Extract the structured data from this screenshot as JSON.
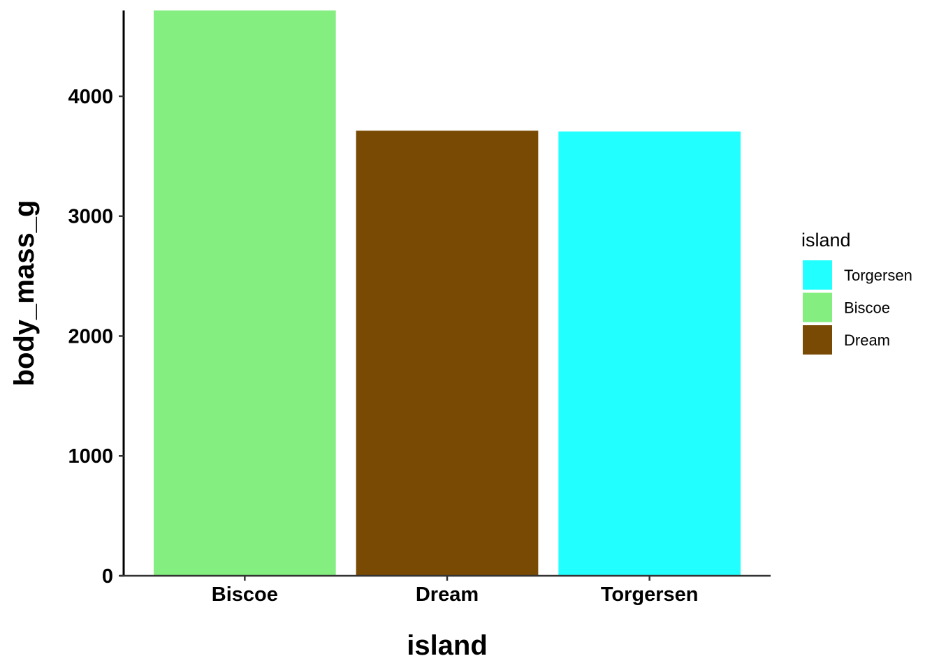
{
  "chart_data": {
    "type": "bar",
    "categories": [
      "Biscoe",
      "Dream",
      "Torgersen"
    ],
    "values": [
      4716,
      3713,
      3706
    ],
    "bar_colors": [
      "#85EE81",
      "#784A03",
      "#22FFFF"
    ],
    "title": "",
    "xlabel": "island",
    "ylabel": "body_mass_g",
    "ylim": [
      0,
      4716
    ],
    "yticks": [
      "0",
      "1000",
      "2000",
      "3000",
      "4000"
    ],
    "ytick_values": [
      0,
      1000,
      2000,
      3000,
      4000
    ],
    "grid": false,
    "legend": {
      "title": "island",
      "placement": "right",
      "entries": [
        {
          "label": "Torgersen",
          "color": "#22FFFF"
        },
        {
          "label": "Biscoe",
          "color": "#85EE81"
        },
        {
          "label": "Dream",
          "color": "#784A03"
        }
      ]
    }
  }
}
